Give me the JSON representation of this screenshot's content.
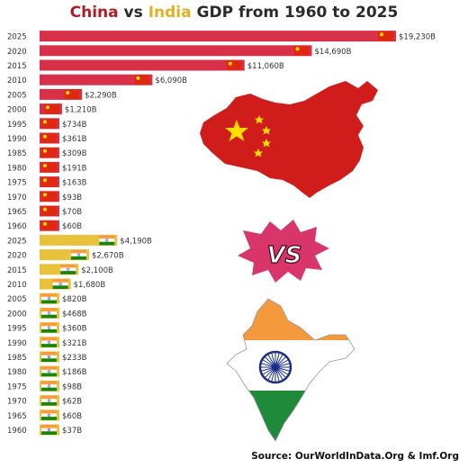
{
  "title": {
    "part1": "China",
    "part2": " vs ",
    "part3": "India",
    "part4": " GDP from 1960 to 2025"
  },
  "source": "Source: OurWorldInData.Org & Imf.Org",
  "vs_text": "VS",
  "colors": {
    "china": "#d9304a",
    "india": "#e9c23c",
    "china_title": "#b31b24",
    "india_title": "#e3b022"
  },
  "chart_data": {
    "type": "bar",
    "orientation": "horizontal",
    "categories": [
      "2025",
      "2020",
      "2015",
      "2010",
      "2005",
      "2000",
      "1995",
      "1990",
      "1985",
      "1980",
      "1975",
      "1970",
      "1965",
      "1960"
    ],
    "series": [
      {
        "name": "China",
        "values": [
          19230,
          14690,
          11060,
          6090,
          2290,
          1210,
          734,
          361,
          309,
          191,
          163,
          93,
          70,
          60
        ],
        "labels": [
          "$19,230B",
          "$14,690B",
          "$11,060B",
          "$6,090B",
          "$2,290B",
          "$1,210B",
          "$734B",
          "$361B",
          "$309B",
          "$191B",
          "$163B",
          "$93B",
          "$70B",
          "$60B"
        ]
      },
      {
        "name": "India",
        "values": [
          4190,
          2670,
          2100,
          1680,
          820,
          468,
          360,
          321,
          233,
          186,
          98,
          62,
          60,
          37
        ],
        "labels": [
          "$4,190B",
          "$2,670B",
          "$2,100B",
          "$1,680B",
          "$820B",
          "$468B",
          "$360B",
          "$321B",
          "$233B",
          "$186B",
          "$98B",
          "$62B",
          "$60B",
          "$37B"
        ]
      }
    ]
  }
}
